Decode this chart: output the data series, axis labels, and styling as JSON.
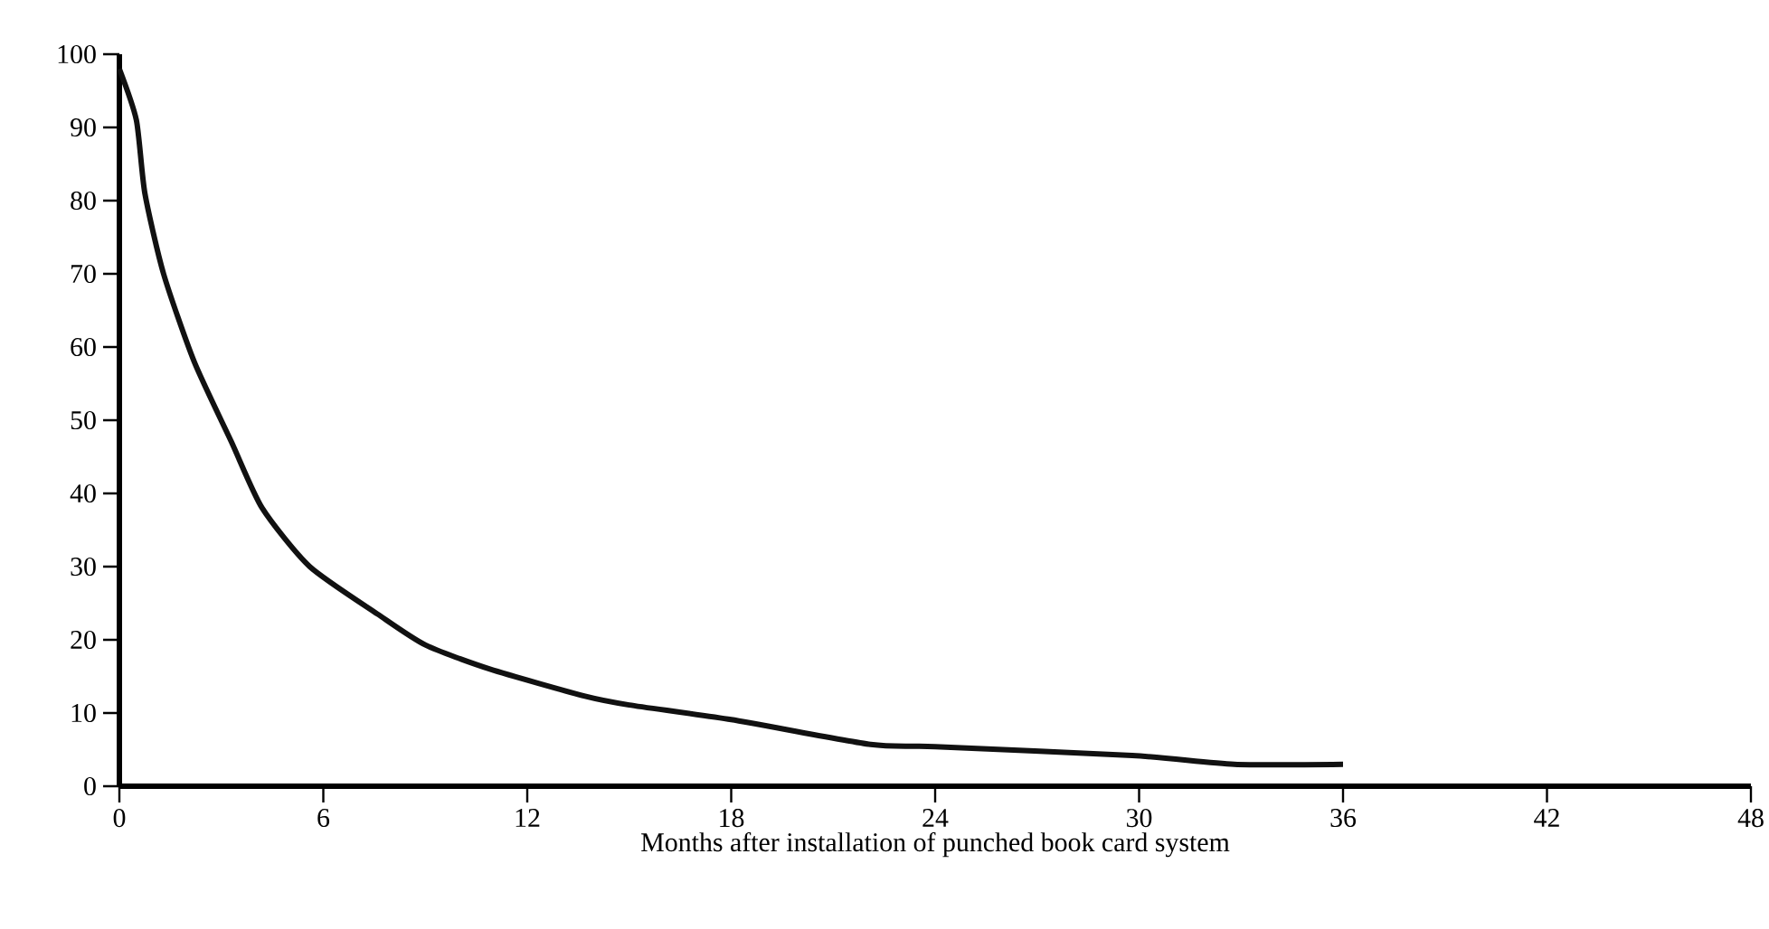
{
  "chart_data": {
    "type": "line",
    "xlabel": "Months after installation of punched book card system",
    "series": [
      {
        "color": "#111111",
        "x": [
          0,
          0.5,
          0.75,
          1.3,
          2.2,
          3.3,
          4.2,
          5.6,
          7.6,
          9,
          10.9,
          13.7,
          15,
          18,
          22.1,
          24,
          29.8,
          32.8,
          36
        ],
        "values": [
          98,
          91,
          81,
          70,
          58,
          47,
          38,
          30,
          23.5,
          19.3,
          16,
          12.3,
          11.1,
          9.1,
          5.7,
          5.4,
          4.2,
          3.0,
          3.0
        ]
      }
    ],
    "xlim": [
      0,
      48
    ],
    "ylim": [
      0,
      100
    ],
    "xticks": [
      0,
      6,
      12,
      18,
      24,
      30,
      36,
      42,
      48
    ],
    "yticks": [
      0,
      10,
      20,
      30,
      40,
      50,
      60,
      70,
      80,
      90,
      100
    ],
    "grid": false,
    "marker": "none",
    "line_style": "solid"
  }
}
